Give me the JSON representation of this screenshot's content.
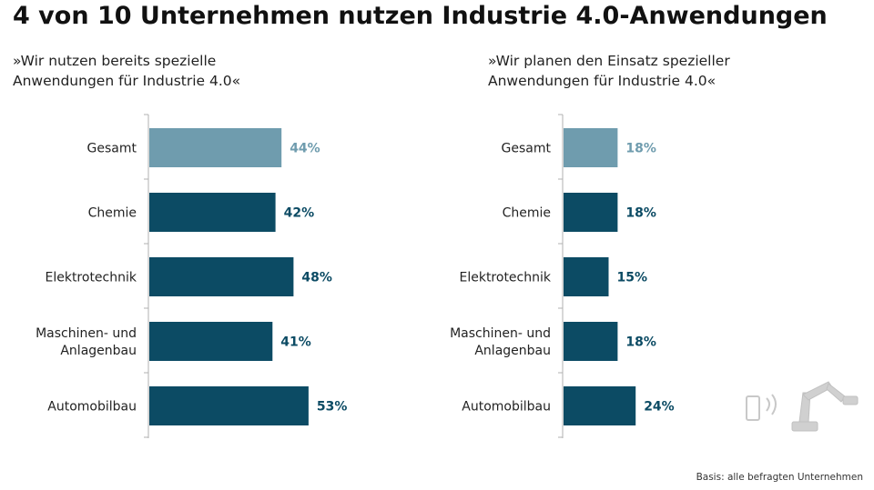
{
  "title": "4 von 10 Unternehmen nutzen Industrie 4.0-Anwendungen",
  "footnote": "Basis: alle befragten Unternehmen",
  "colors": {
    "highlight": "#6f9cae",
    "bar": "#0c4b64",
    "axis": "#b0b0b0"
  },
  "chart_data": [
    {
      "type": "bar",
      "orientation": "horizontal",
      "subtitle_lines": [
        "»Wir nutzen bereits spezielle",
        "Anwendungen für Industrie 4.0«"
      ],
      "categories": [
        [
          "Gesamt"
        ],
        [
          "Chemie"
        ],
        [
          "Elektrotechnik"
        ],
        [
          "Maschinen- und",
          "Anlagenbau"
        ],
        [
          "Automobilbau"
        ]
      ],
      "values": [
        44,
        42,
        48,
        41,
        53
      ],
      "value_labels": [
        "44%",
        "42%",
        "48%",
        "41%",
        "53%"
      ],
      "unit": "%",
      "xlim": [
        0,
        100
      ],
      "highlight_index": 0,
      "grid": false,
      "legend": "none"
    },
    {
      "type": "bar",
      "orientation": "horizontal",
      "subtitle_lines": [
        "»Wir planen den Einsatz spezieller",
        "Anwendungen für Industrie 4.0«"
      ],
      "categories": [
        [
          "Gesamt"
        ],
        [
          "Chemie"
        ],
        [
          "Elektrotechnik"
        ],
        [
          "Maschinen- und",
          "Anlagenbau"
        ],
        [
          "Automobilbau"
        ]
      ],
      "values": [
        18,
        18,
        15,
        18,
        24
      ],
      "value_labels": [
        "18%",
        "18%",
        "15%",
        "18%",
        "24%"
      ],
      "unit": "%",
      "xlim": [
        0,
        100
      ],
      "highlight_index": 0,
      "grid": false,
      "legend": "none"
    }
  ]
}
